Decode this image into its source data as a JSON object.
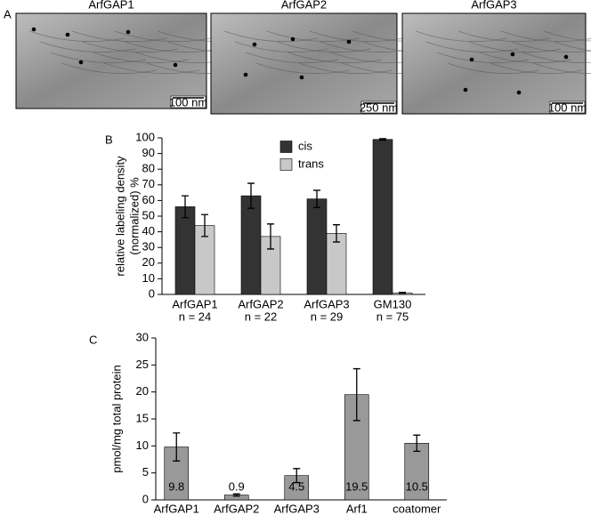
{
  "panel_a": {
    "label": "A",
    "images": [
      {
        "title": "ArfGAP1",
        "scale_bar": "100 nm"
      },
      {
        "title": "ArfGAP2",
        "scale_bar": "250 nm"
      },
      {
        "title": "ArfGAP3",
        "scale_bar": "100 nm"
      }
    ]
  },
  "chart_data": [
    {
      "type": "grouped_bar",
      "panel_label": "B",
      "ylabel": [
        "relative labeling density",
        "(normalized) %"
      ],
      "categories": [
        "ArfGAP1",
        "ArfGAP2",
        "ArfGAP3",
        "GM130"
      ],
      "sample_sizes": [
        "n = 24",
        "n = 22",
        "n = 29",
        "n = 75"
      ],
      "series": [
        {
          "name": "cis",
          "color": "#333333",
          "values": [
            56,
            63,
            61,
            99
          ],
          "errors": [
            7,
            8,
            5.5,
            0.5
          ]
        },
        {
          "name": "trans",
          "color": "#c8c8c8",
          "values": [
            44,
            37,
            39,
            1
          ],
          "errors": [
            7,
            8,
            5.5,
            0.3
          ]
        }
      ],
      "ylim": [
        0,
        100
      ],
      "yticks": [
        0,
        10,
        20,
        30,
        40,
        50,
        60,
        70,
        80,
        90,
        100
      ],
      "legend": "top"
    },
    {
      "type": "bar",
      "panel_label": "C",
      "ylabel": [
        "pmol/mg total protein"
      ],
      "categories": [
        "ArfGAP1",
        "ArfGAP2",
        "ArfGAP3",
        "Arf1",
        "coatomer"
      ],
      "values": [
        9.8,
        0.9,
        4.5,
        19.5,
        10.5
      ],
      "errors": [
        2.6,
        0.2,
        1.3,
        4.8,
        1.5
      ],
      "color": "#999999",
      "ylim": [
        0,
        30
      ],
      "yticks": [
        0,
        5,
        10,
        15,
        20,
        25,
        30
      ]
    }
  ]
}
